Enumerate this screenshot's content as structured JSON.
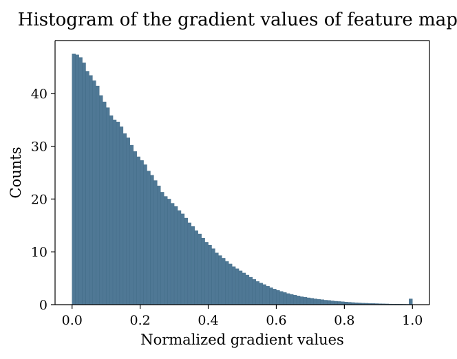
{
  "chart_data": {
    "type": "bar",
    "title": "Histogram of the gradient values of feature maps",
    "xlabel": "Normalized gradient values",
    "ylabel": "Counts",
    "xlim": [
      -0.05,
      1.05
    ],
    "ylim": [
      0,
      50
    ],
    "xticks": [
      "0.0",
      "0.2",
      "0.4",
      "0.6",
      "0.8",
      "1.0"
    ],
    "yticks": [
      "0",
      "10",
      "20",
      "30",
      "40"
    ],
    "bin_width": 0.01,
    "bin_start": 0.0,
    "grid": false,
    "bar_color": "#4f7895",
    "bar_edge_color": "#3f6985",
    "values": [
      47.5,
      47.3,
      46.8,
      45.8,
      44.2,
      43.4,
      42.4,
      41.4,
      39.6,
      38.4,
      37.3,
      35.8,
      35.0,
      34.6,
      33.7,
      32.4,
      31.6,
      30.2,
      29.0,
      28.0,
      27.3,
      26.5,
      25.3,
      24.5,
      23.5,
      22.5,
      21.3,
      20.5,
      20.0,
      19.2,
      18.6,
      17.8,
      17.2,
      16.4,
      15.5,
      14.8,
      14.0,
      13.4,
      12.6,
      11.8,
      11.3,
      10.6,
      9.8,
      9.3,
      8.8,
      8.2,
      7.7,
      7.2,
      6.8,
      6.4,
      6.0,
      5.6,
      5.2,
      4.8,
      4.4,
      4.1,
      3.8,
      3.5,
      3.2,
      2.95,
      2.7,
      2.5,
      2.3,
      2.1,
      1.95,
      1.8,
      1.65,
      1.5,
      1.4,
      1.3,
      1.2,
      1.1,
      1.0,
      0.95,
      0.85,
      0.8,
      0.72,
      0.65,
      0.6,
      0.55,
      0.5,
      0.45,
      0.4,
      0.37,
      0.33,
      0.3,
      0.27,
      0.24,
      0.22,
      0.2,
      0.18,
      0.16,
      0.14,
      0.12,
      0.11,
      0.1,
      0.09,
      0.08,
      0.07,
      1.1
    ]
  }
}
